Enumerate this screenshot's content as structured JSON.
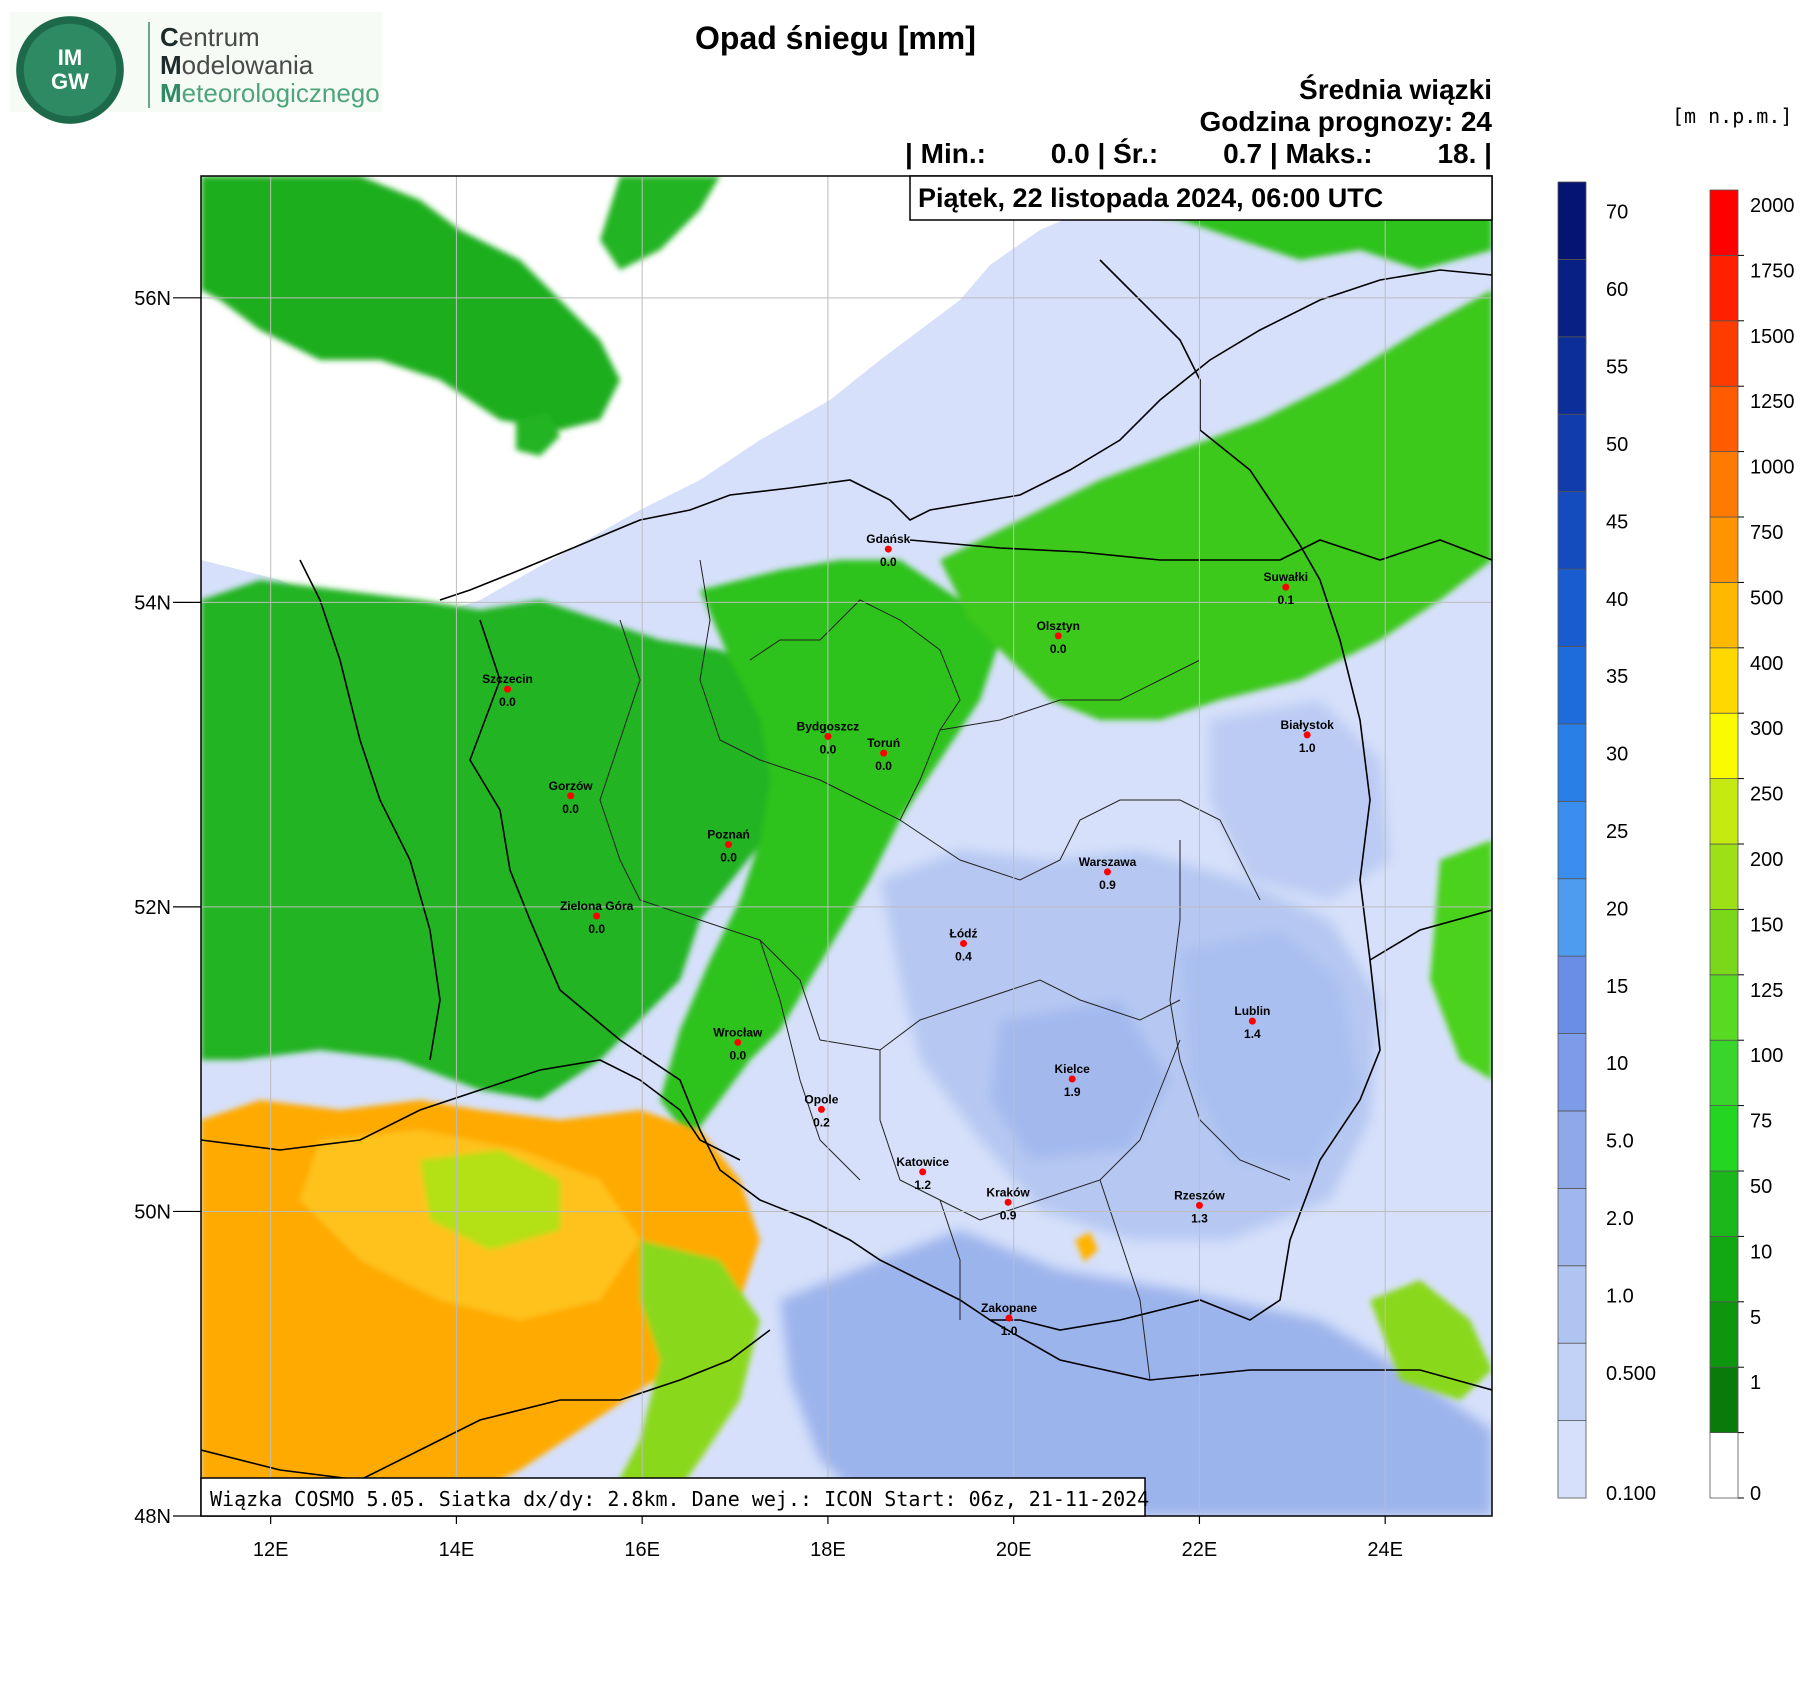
{
  "logo": {
    "seal_letters": "IM GW",
    "line1_cap": "C",
    "line1_rest": "entrum",
    "line2_cap": "M",
    "line2_rest": "odelowania",
    "line3_cap": "M",
    "line3_rest": "eteorologicznego"
  },
  "header": {
    "title": "Opad śniegu [mm]",
    "line1": "Średnia wiązki",
    "line2": "Godzina prognozy: 24",
    "stats_min_label": "| Min.:",
    "stats_min": "0.0",
    "stats_avg_label": "| Śr.:",
    "stats_avg": "0.7",
    "stats_max_label": "| Maks.:",
    "stats_max": "18.",
    "stats_end": "|",
    "date_box": "Piątek, 22 listopada 2024, 06:00 UTC"
  },
  "footer_box": "Wiązka COSMO 5.05. Siatka dx/dy: 2.8km. Dane wej.: ICON Start: 06z, 21-11-2024",
  "map": {
    "lat_labels": [
      "56N",
      "54N",
      "52N",
      "50N",
      "48N"
    ],
    "lon_labels": [
      "12E",
      "14E",
      "16E",
      "18E",
      "20E",
      "22E",
      "24E"
    ],
    "lat_range": [
      48,
      56.8
    ],
    "lon_range": [
      11.25,
      25.15
    ],
    "colors": {
      "green_dark": "#0e8c0e",
      "green": "#22b422",
      "green_light": "#4cd21a",
      "yellow_green": "#8ad81a",
      "orange": "#ffaa00",
      "orange_light": "#ffc21a",
      "blue_faint": "#d6e0fa",
      "blue_light": "#b6c8f2",
      "blue_mid": "#9cb4ec"
    }
  },
  "cities": [
    {
      "name": "Gdańsk",
      "value": "0.0",
      "lon": 18.65,
      "lat": 54.35
    },
    {
      "name": "Suwałki",
      "value": "0.1",
      "lon": 22.93,
      "lat": 54.1
    },
    {
      "name": "Olsztyn",
      "value": "0.0",
      "lon": 20.48,
      "lat": 53.78
    },
    {
      "name": "Szczecin",
      "value": "0.0",
      "lon": 14.55,
      "lat": 53.43
    },
    {
      "name": "Bydgoszcz",
      "value": "0.0",
      "lon": 18.0,
      "lat": 53.12
    },
    {
      "name": "Toruń",
      "value": "0.0",
      "lon": 18.6,
      "lat": 53.01
    },
    {
      "name": "Białystok",
      "value": "1.0",
      "lon": 23.16,
      "lat": 53.13
    },
    {
      "name": "Gorzów",
      "value": "0.0",
      "lon": 15.23,
      "lat": 52.73
    },
    {
      "name": "Poznań",
      "value": "0.0",
      "lon": 16.93,
      "lat": 52.41
    },
    {
      "name": "Warszawa",
      "value": "0.9",
      "lon": 21.01,
      "lat": 52.23
    },
    {
      "name": "Zielona Góra",
      "value": "0.0",
      "lon": 15.51,
      "lat": 51.94
    },
    {
      "name": "Łódź",
      "value": "0.4",
      "lon": 19.46,
      "lat": 51.76
    },
    {
      "name": "Lublin",
      "value": "1.4",
      "lon": 22.57,
      "lat": 51.25
    },
    {
      "name": "Wrocław",
      "value": "0.0",
      "lon": 17.03,
      "lat": 51.11
    },
    {
      "name": "Kielce",
      "value": "1.9",
      "lon": 20.63,
      "lat": 50.87
    },
    {
      "name": "Opole",
      "value": "0.2",
      "lon": 17.93,
      "lat": 50.67
    },
    {
      "name": "Katowice",
      "value": "1.2",
      "lon": 19.02,
      "lat": 50.26
    },
    {
      "name": "Kraków",
      "value": "0.9",
      "lon": 19.94,
      "lat": 50.06
    },
    {
      "name": "Rzeszów",
      "value": "1.3",
      "lon": 22.0,
      "lat": 50.04
    },
    {
      "name": "Zakopane",
      "value": "1.0",
      "lon": 19.95,
      "lat": 49.3
    }
  ],
  "legend_snow": {
    "labels": [
      "0.100",
      "0.500",
      "1.0",
      "2.0",
      "5.0",
      "10",
      "15",
      "20",
      "25",
      "30",
      "35",
      "40",
      "45",
      "50",
      "55",
      "60",
      "70"
    ],
    "colors": [
      "#d6e0fa",
      "#c2d1f6",
      "#b0c4f2",
      "#9fb6ee",
      "#8ea8ea",
      "#7c9be8",
      "#6a8ee6",
      "#4d9cf0",
      "#3a8ef0",
      "#2a7ee8",
      "#1e6cdc",
      "#185cd0",
      "#144cc0",
      "#103cac",
      "#0c2e98",
      "#082084",
      "#041470"
    ]
  },
  "legend_elev": {
    "unit": "[m n.p.m.]",
    "labels": [
      "0",
      "1",
      "5",
      "10",
      "50",
      "75",
      "100",
      "125",
      "150",
      "200",
      "250",
      "300",
      "400",
      "500",
      "750",
      "1000",
      "1250",
      "1500",
      "1750",
      "2000"
    ],
    "colors": [
      "#ffffff",
      "#0a7a0a",
      "#0e960e",
      "#12a812",
      "#1ab81a",
      "#22d622",
      "#38d62a",
      "#58da22",
      "#7ad81a",
      "#9ee016",
      "#c4ea12",
      "#fafa00",
      "#ffd800",
      "#ffb800",
      "#ff9400",
      "#ff7a00",
      "#ff5c00",
      "#ff3c00",
      "#ff2000",
      "#ff0000"
    ]
  }
}
